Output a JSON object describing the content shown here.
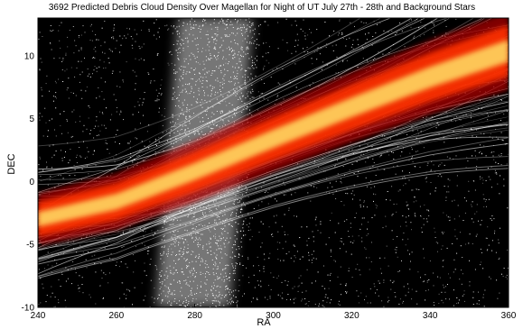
{
  "chart_data": {
    "type": "heatmap",
    "title": "3692 Predicted Debris Cloud Density Over Magellan for Night of UT July 27th - 28th and Background Stars",
    "xlabel": "RA",
    "ylabel": "DEC",
    "xlim": [
      240,
      360
    ],
    "ylim": [
      -10,
      13
    ],
    "x_ticks": [
      240,
      260,
      280,
      300,
      320,
      340,
      360
    ],
    "y_ticks": [
      -10,
      -5,
      0,
      5,
      10
    ],
    "background": "black",
    "debris_band_centerline": {
      "x": [
        240,
        260,
        280,
        300,
        320,
        340,
        360
      ],
      "y": [
        -3.0,
        -1.6,
        0.8,
        3.4,
        5.9,
        8.3,
        10.4
      ]
    },
    "debris_band_halfwidth_dec": 1.3,
    "milky_way_ra_range": [
      270,
      295
    ],
    "colors": {
      "band_core": "#ffe066",
      "band_mid": "#ff3000",
      "band_edge": "#aa0000",
      "stars": "#ffffff",
      "background": "#000000"
    }
  }
}
